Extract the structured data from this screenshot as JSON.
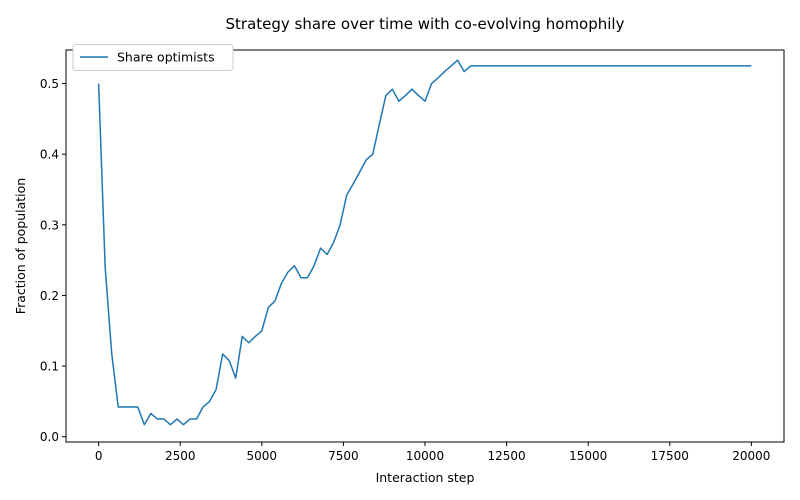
{
  "chart_data": {
    "type": "line",
    "title": "Strategy share over time with co-evolving homophily",
    "xlabel": "Interaction step",
    "ylabel": "Fraction of population",
    "xlim": [
      -1000,
      21000
    ],
    "ylim": [
      -0.0075,
      0.5475
    ],
    "xticks": [
      0,
      2500,
      5000,
      7500,
      10000,
      12500,
      15000,
      17500,
      20000
    ],
    "xtick_labels": [
      "0",
      "2500",
      "5000",
      "7500",
      "10000",
      "12500",
      "15000",
      "17500",
      "20000"
    ],
    "yticks": [
      0.0,
      0.1,
      0.2,
      0.3,
      0.4,
      0.5
    ],
    "ytick_labels": [
      "0.0",
      "0.1",
      "0.2",
      "0.3",
      "0.4",
      "0.5"
    ],
    "grid": false,
    "legend": {
      "placement": "top-left",
      "entries": [
        "Share optimists"
      ]
    },
    "series": [
      {
        "name": "Share optimists",
        "color": "#1f77b4",
        "x": [
          0,
          200,
          400,
          600,
          800,
          1000,
          1200,
          1400,
          1600,
          1800,
          2000,
          2200,
          2400,
          2600,
          2800,
          3000,
          3200,
          3400,
          3600,
          3800,
          4000,
          4200,
          4400,
          4600,
          4800,
          5000,
          5200,
          5400,
          5600,
          5800,
          6000,
          6200,
          6400,
          6600,
          6800,
          7000,
          7200,
          7400,
          7600,
          7800,
          8000,
          8200,
          8400,
          8600,
          8800,
          9000,
          9200,
          9400,
          9600,
          9800,
          10000,
          10200,
          10400,
          10600,
          10800,
          11000,
          11200,
          11400,
          20000
        ],
        "y": [
          0.5,
          0.24,
          0.118,
          0.042,
          0.042,
          0.042,
          0.042,
          0.017,
          0.033,
          0.025,
          0.025,
          0.017,
          0.025,
          0.017,
          0.025,
          0.025,
          0.042,
          0.05,
          0.067,
          0.117,
          0.108,
          0.083,
          0.142,
          0.133,
          0.142,
          0.15,
          0.183,
          0.192,
          0.217,
          0.233,
          0.242,
          0.225,
          0.225,
          0.242,
          0.267,
          0.258,
          0.275,
          0.3,
          0.342,
          0.358,
          0.375,
          0.392,
          0.4,
          0.442,
          0.483,
          0.492,
          0.475,
          0.483,
          0.492,
          0.483,
          0.475,
          0.5,
          0.508,
          0.517,
          0.525,
          0.533,
          0.517,
          0.525,
          0.525
        ]
      }
    ]
  }
}
